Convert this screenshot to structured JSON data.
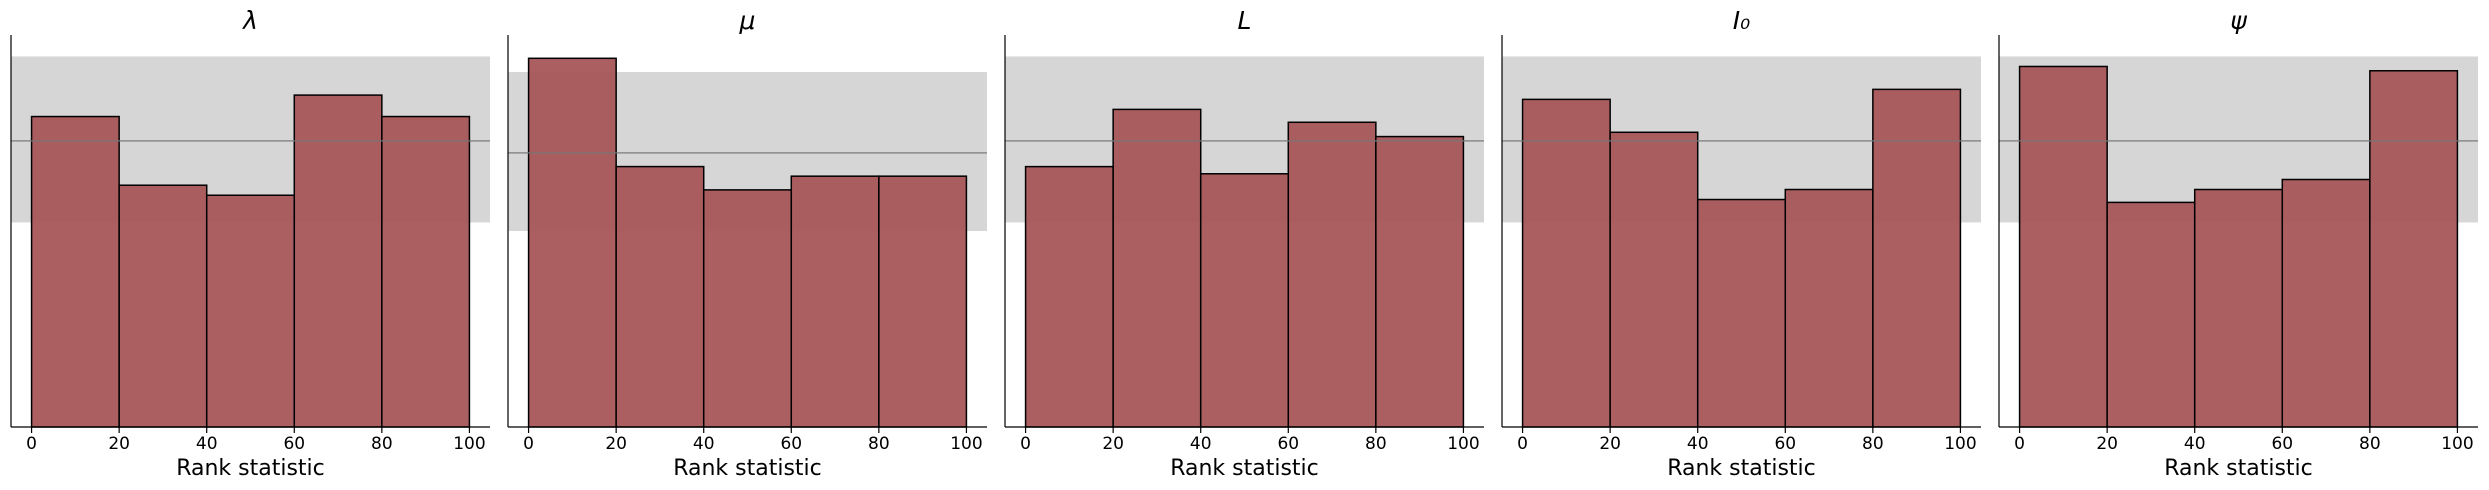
{
  "chart_data": [
    {
      "type": "histogram",
      "title": "λ",
      "xlabel": "Rank statistic",
      "bins": [
        0,
        20,
        40,
        60,
        80,
        100
      ],
      "values": [
        21.7,
        16.9,
        16.2,
        23.2,
        21.7
      ],
      "color": "#a65659",
      "xlim": [
        -4.7,
        104.7
      ],
      "xticks": [
        0,
        20,
        40,
        60,
        80,
        100
      ],
      "ylim": [
        0,
        27.4
      ],
      "band": [
        14.3,
        25.9
      ],
      "expected": 20
    },
    {
      "type": "histogram",
      "title": "μ",
      "xlabel": "Rank statistic",
      "bins": [
        0,
        20,
        40,
        60,
        80,
        100
      ],
      "values": [
        26.9,
        19.0,
        17.3,
        18.3,
        18.3
      ],
      "color": "#a65659",
      "xlim": [
        -4.7,
        104.7
      ],
      "xticks": [
        0,
        20,
        40,
        60,
        80,
        100
      ],
      "ylim": [
        0,
        28.6
      ],
      "band": [
        14.3,
        25.9
      ],
      "expected": 20
    },
    {
      "type": "histogram",
      "title": "L",
      "xlabel": "Rank statistic",
      "bins": [
        0,
        20,
        40,
        60,
        80,
        100
      ],
      "values": [
        18.2,
        22.2,
        17.7,
        21.3,
        20.3
      ],
      "color": "#a65659",
      "xlim": [
        -4.7,
        104.7
      ],
      "xticks": [
        0,
        20,
        40,
        60,
        80,
        100
      ],
      "ylim": [
        0,
        27.4
      ],
      "band": [
        14.3,
        25.9
      ],
      "expected": 20
    },
    {
      "type": "histogram",
      "title": "I₀",
      "xlabel": "Rank statistic",
      "bins": [
        0,
        20,
        40,
        60,
        80,
        100
      ],
      "values": [
        22.9,
        20.6,
        15.9,
        16.6,
        23.6
      ],
      "color": "#a65659",
      "xlim": [
        -4.7,
        104.7
      ],
      "xticks": [
        0,
        20,
        40,
        60,
        80,
        100
      ],
      "ylim": [
        0,
        27.4
      ],
      "band": [
        14.3,
        25.9
      ],
      "expected": 20
    },
    {
      "type": "histogram",
      "title": "ψ",
      "xlabel": "Rank statistic",
      "bins": [
        0,
        20,
        40,
        60,
        80,
        100
      ],
      "values": [
        25.2,
        15.7,
        16.6,
        17.3,
        24.9
      ],
      "color": "#a65659",
      "xlim": [
        -4.7,
        104.7
      ],
      "xticks": [
        0,
        20,
        40,
        60,
        80,
        100
      ],
      "ylim": [
        0,
        27.4
      ],
      "band": [
        14.3,
        25.9
      ],
      "expected": 20
    }
  ]
}
